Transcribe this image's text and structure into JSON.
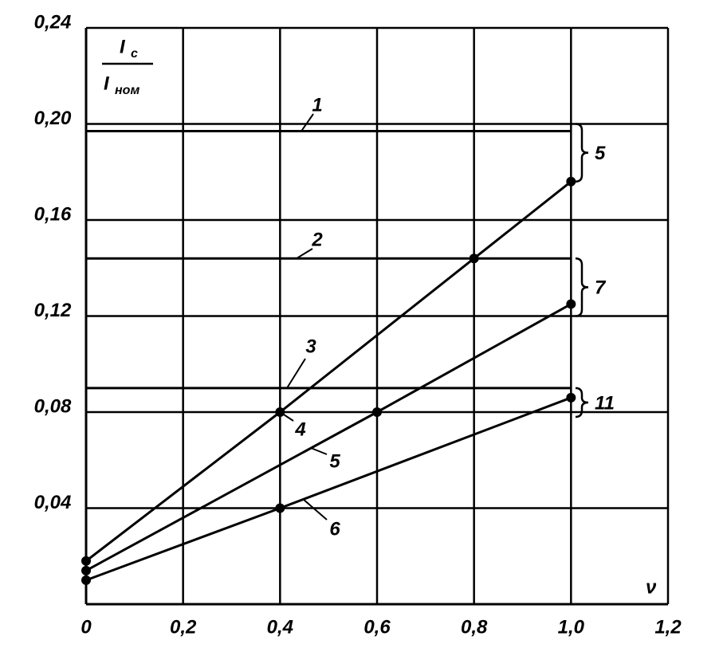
{
  "chart_data": {
    "type": "line",
    "ylabel_numerator": "I",
    "ylabel_numerator_sub": "c",
    "ylabel_denominator": "I",
    "ylabel_denominator_sub": "ном",
    "xlabel": "ν",
    "xlim": [
      0,
      1.2
    ],
    "xticks": [
      0,
      {
        "value": 0.2,
        "label": "0,2"
      },
      {
        "value": 0.4,
        "label": "0,4"
      },
      {
        "value": 0.6,
        "label": "0,6"
      },
      {
        "value": 0.8,
        "label": "0,8"
      },
      {
        "value": 1.0,
        "label": "1,0"
      },
      {
        "value": 1.2,
        "label": "1,2"
      }
    ],
    "ylim": [
      0,
      0.24
    ],
    "yticks": [
      {
        "value": 0.04,
        "label": "0,04"
      },
      {
        "value": 0.08,
        "label": "0,08"
      },
      {
        "value": 0.12,
        "label": "0,12"
      },
      {
        "value": 0.16,
        "label": "0,16"
      },
      {
        "value": 0.2,
        "label": "0,20"
      },
      {
        "value": 0.24,
        "label": "0,24"
      }
    ],
    "grid": true,
    "color": "#000000",
    "series": [
      {
        "name": "1",
        "x": [
          0,
          1.0
        ],
        "values": [
          0.197,
          0.197
        ]
      },
      {
        "name": "2",
        "x": [
          0,
          1.0
        ],
        "values": [
          0.144,
          0.144
        ]
      },
      {
        "name": "3",
        "x": [
          0,
          1.0
        ],
        "values": [
          0.09,
          0.09
        ]
      },
      {
        "name": "4",
        "x": [
          0,
          0.4,
          0.8,
          1.0
        ],
        "values": [
          0.018,
          0.08,
          0.144,
          0.176
        ]
      },
      {
        "name": "5",
        "x": [
          0,
          0.6,
          1.0
        ],
        "values": [
          0.014,
          0.08,
          0.125
        ]
      },
      {
        "name": "6",
        "x": [
          0,
          0.4,
          1.0
        ],
        "values": [
          0.01,
          0.04,
          0.086
        ]
      }
    ],
    "brackets": [
      {
        "label": "5",
        "range": [
          0.176,
          0.2
        ]
      },
      {
        "label": "7",
        "range": [
          0.12,
          0.144
        ]
      },
      {
        "label": "11",
        "range": [
          0.078,
          0.09
        ]
      }
    ]
  }
}
